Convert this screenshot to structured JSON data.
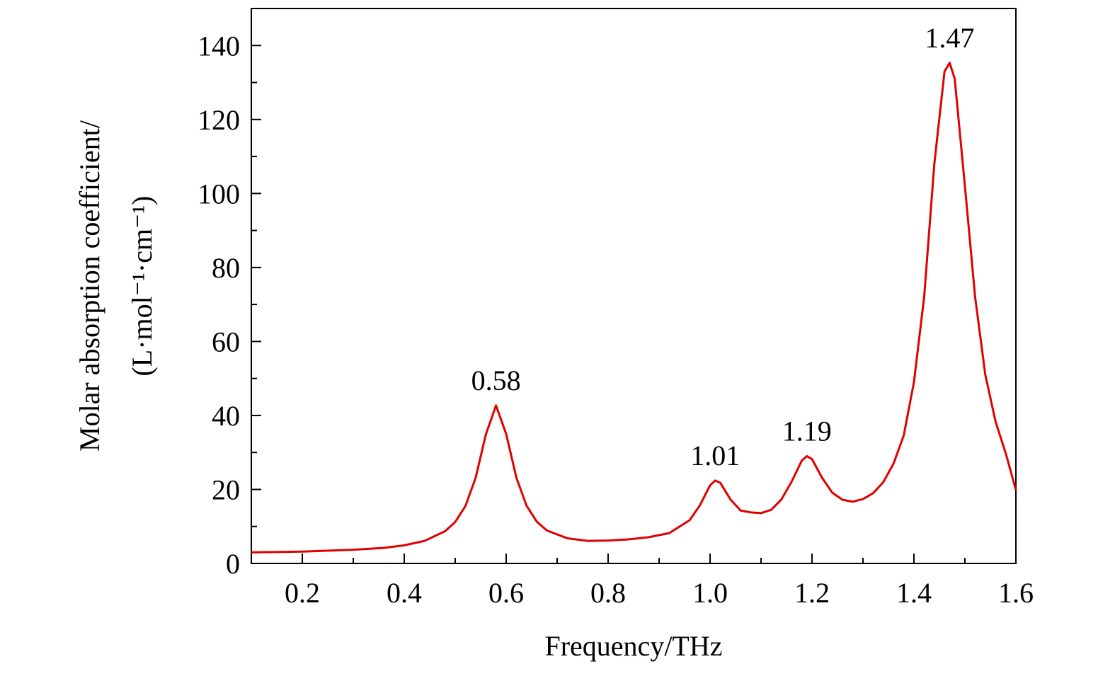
{
  "chart_data": {
    "type": "line",
    "x_label": "Frequency/THz",
    "y_label": [
      "Molar absorption coefficient/",
      "(L·mol⁻¹·cm⁻¹)"
    ],
    "xlim": [
      0.1,
      1.6
    ],
    "ylim": [
      0,
      150
    ],
    "xticks": [
      0.2,
      0.4,
      0.6,
      0.8,
      {
        "value": 1,
        "label": "1.0"
      },
      1.2,
      1.4,
      1.6
    ],
    "xminorticks": [
      0.3,
      0.5,
      0.7,
      0.9,
      1.1,
      1.3,
      1.5
    ],
    "yticks": [
      0,
      20,
      40,
      60,
      80,
      100,
      120,
      140
    ],
    "yminorticks": [
      10,
      30,
      50,
      70,
      90,
      110,
      130
    ],
    "x": [
      0.1,
      0.2,
      0.3,
      0.36,
      0.4,
      0.44,
      0.48,
      0.5,
      0.52,
      0.54,
      0.56,
      0.58,
      0.6,
      0.62,
      0.64,
      0.66,
      0.68,
      0.72,
      0.76,
      0.8,
      0.84,
      0.88,
      0.92,
      0.96,
      0.98,
      1.0,
      1.01,
      1.02,
      1.04,
      1.06,
      1.08,
      1.1,
      1.12,
      1.14,
      1.16,
      1.18,
      1.19,
      1.2,
      1.22,
      1.24,
      1.26,
      1.28,
      1.3,
      1.32,
      1.34,
      1.36,
      1.38,
      1.4,
      1.42,
      1.44,
      1.46,
      1.47,
      1.48,
      1.5,
      1.52,
      1.54,
      1.56,
      1.58,
      1.6
    ],
    "series": [
      {
        "color": "#e00000",
        "values": [
          3.0,
          3.2,
          3.7,
          4.2,
          4.9,
          6.1,
          8.7,
          11.2,
          15.5,
          23.1,
          34.8,
          42.7,
          35,
          23.2,
          15.6,
          11.3,
          8.9,
          6.8,
          6.1,
          6.2,
          6.5,
          7.1,
          8.2,
          11.7,
          15.7,
          21.1,
          22.4,
          21.8,
          17.3,
          14.3,
          13.8,
          13.6,
          14.5,
          17.3,
          22.1,
          27.8,
          29,
          28.2,
          23.1,
          19.1,
          17.2,
          16.7,
          17.4,
          19.0,
          22,
          27,
          34.6,
          49,
          72,
          108,
          133,
          135.3,
          131,
          102,
          72,
          51,
          38.4,
          29.8,
          19.9
        ]
      }
    ],
    "annotations": [
      {
        "x": 0.58,
        "text": "0.58"
      },
      {
        "x": 1.01,
        "text": "1.01"
      },
      {
        "x": 1.19,
        "text": "1.19"
      },
      {
        "x": 1.47,
        "text": "1.47"
      }
    ]
  }
}
